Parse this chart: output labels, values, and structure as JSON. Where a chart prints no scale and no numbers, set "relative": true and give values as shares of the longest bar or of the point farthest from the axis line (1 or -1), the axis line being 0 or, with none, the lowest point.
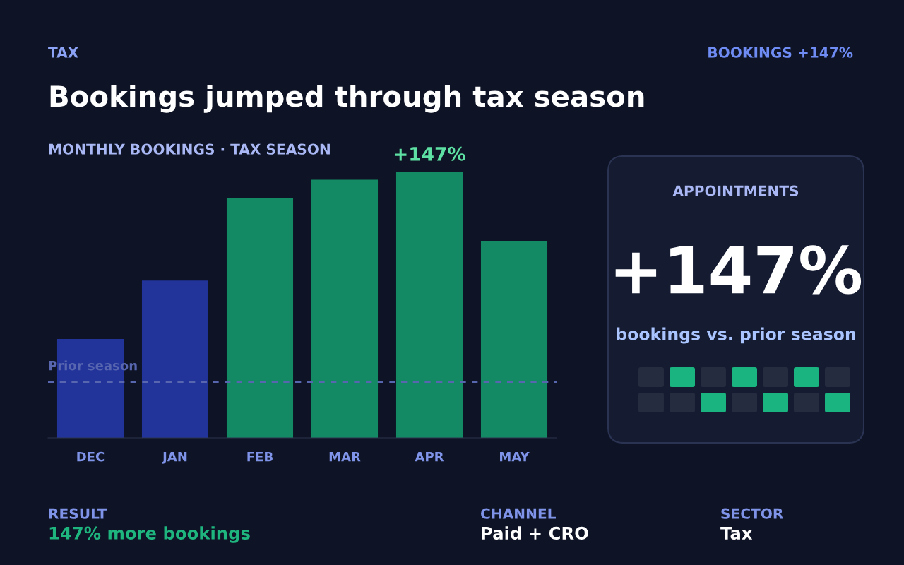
{
  "chart_data": [
    {
      "type": "bar",
      "title": "Bookings jumped through tax season",
      "subtitle": "MONTHLY BOOKINGS · TAX SEASON",
      "categories": [
        "DEC",
        "JAN",
        "FEB",
        "MAR",
        "APR",
        "MAY"
      ],
      "values": [
        0.37,
        0.59,
        0.9,
        0.97,
        1,
        0.74
      ],
      "colors": [
        "#22339a",
        "#22339a",
        "#148a64",
        "#148a64",
        "#148a64",
        "#148a64"
      ],
      "relative": true,
      "ref_lines": [
        {
          "axis": "y",
          "value": 0.21,
          "label": "Prior season",
          "color": "#5866b0",
          "line_style": "dashed"
        }
      ],
      "annotations": [
        {
          "text": "+147%",
          "x": "APR",
          "y": 1
        },
        "TAX",
        "BOOKINGS +147%",
        "RESULT",
        "147% more bookings",
        "CHANNEL",
        "Paid + CRO",
        "SECTOR",
        "Tax"
      ]
    },
    {
      "type": "other",
      "title": "APPOINTMENTS",
      "annotations": [
        "+147%",
        "bookings vs. prior season"
      ]
    }
  ]
}
